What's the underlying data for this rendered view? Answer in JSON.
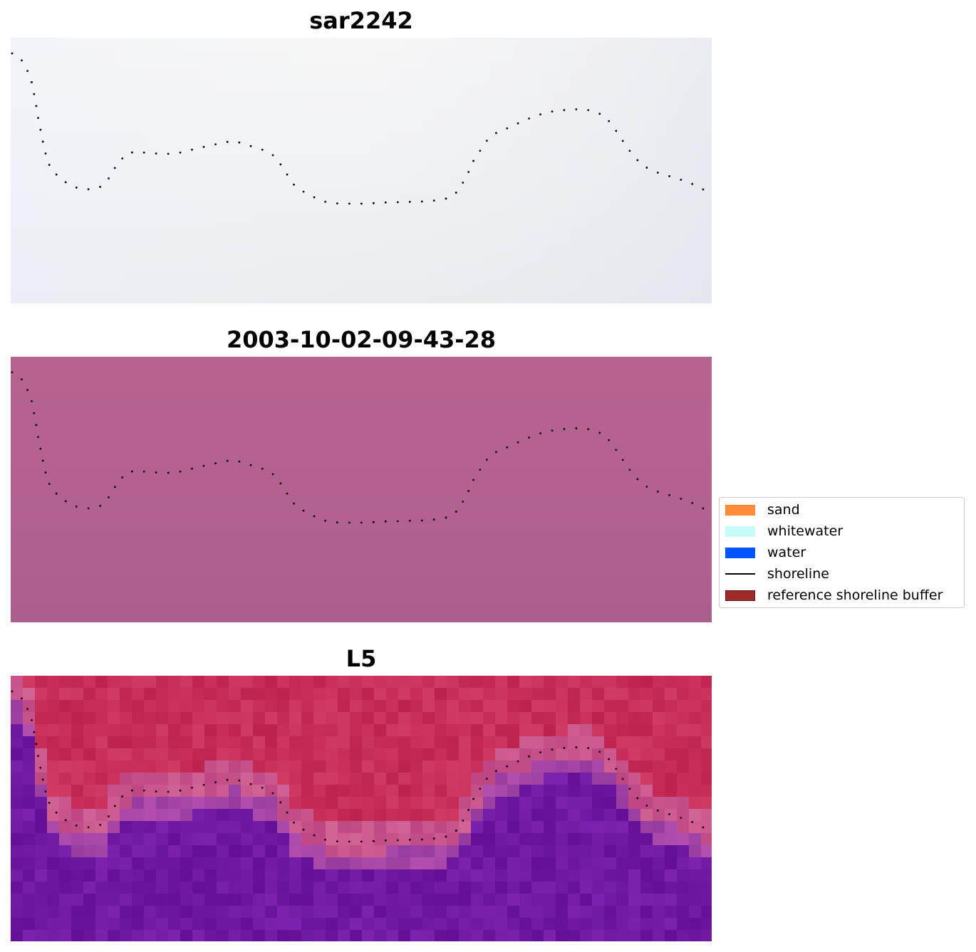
{
  "panels": [
    {
      "title": "sar2242",
      "image": "near-white RGB imagery with faint blue tint"
    },
    {
      "title": "2003-10-02-09-43-28",
      "image": "uniform pink-purple false color imagery"
    },
    {
      "title": "L5",
      "image": "red upper band and purple lower band index imagery"
    }
  ],
  "legend": {
    "items": [
      {
        "label": "sand",
        "color": "#ff8c3a",
        "kind": "patch"
      },
      {
        "label": "whitewater",
        "color": "#c8fcf8",
        "kind": "patch"
      },
      {
        "label": "water",
        "color": "#0055ff",
        "kind": "patch"
      },
      {
        "label": "shoreline",
        "color": "#000000",
        "kind": "line"
      },
      {
        "label": "reference shoreline buffer",
        "color": "#9e2a2a",
        "kind": "patch"
      }
    ]
  },
  "shoreline": [
    [
      2,
      22
    ],
    [
      14,
      29
    ],
    [
      20,
      40
    ],
    [
      28,
      55
    ],
    [
      32,
      75
    ],
    [
      35,
      90
    ],
    [
      38,
      110
    ],
    [
      42,
      130
    ],
    [
      46,
      150
    ],
    [
      52,
      175
    ],
    [
      60,
      188
    ],
    [
      72,
      200
    ],
    [
      90,
      210
    ],
    [
      108,
      213
    ],
    [
      125,
      210
    ],
    [
      136,
      200
    ],
    [
      148,
      180
    ],
    [
      162,
      163
    ],
    [
      175,
      160
    ],
    [
      195,
      162
    ],
    [
      212,
      163
    ],
    [
      228,
      163
    ],
    [
      245,
      160
    ],
    [
      262,
      155
    ],
    [
      278,
      152
    ],
    [
      298,
      147
    ],
    [
      314,
      145
    ],
    [
      330,
      150
    ],
    [
      346,
      155
    ],
    [
      362,
      160
    ],
    [
      374,
      170
    ],
    [
      382,
      183
    ],
    [
      390,
      195
    ],
    [
      398,
      207
    ],
    [
      408,
      215
    ],
    [
      420,
      220
    ],
    [
      432,
      228
    ],
    [
      448,
      232
    ],
    [
      465,
      233
    ],
    [
      482,
      233
    ],
    [
      498,
      233
    ],
    [
      515,
      232
    ],
    [
      532,
      231
    ],
    [
      550,
      231
    ],
    [
      566,
      230
    ],
    [
      582,
      230
    ],
    [
      600,
      228
    ],
    [
      616,
      225
    ],
    [
      626,
      217
    ],
    [
      634,
      205
    ],
    [
      642,
      190
    ],
    [
      650,
      172
    ],
    [
      658,
      160
    ],
    [
      668,
      145
    ],
    [
      686,
      130
    ],
    [
      702,
      126
    ],
    [
      716,
      118
    ],
    [
      736,
      110
    ],
    [
      752,
      105
    ],
    [
      770,
      102
    ],
    [
      786,
      101
    ],
    [
      802,
      100
    ],
    [
      818,
      103
    ],
    [
      834,
      110
    ],
    [
      846,
      125
    ],
    [
      856,
      140
    ],
    [
      866,
      155
    ],
    [
      876,
      168
    ],
    [
      888,
      180
    ],
    [
      904,
      188
    ],
    [
      920,
      193
    ],
    [
      936,
      198
    ],
    [
      952,
      203
    ],
    [
      966,
      210
    ],
    [
      982,
      218
    ]
  ]
}
